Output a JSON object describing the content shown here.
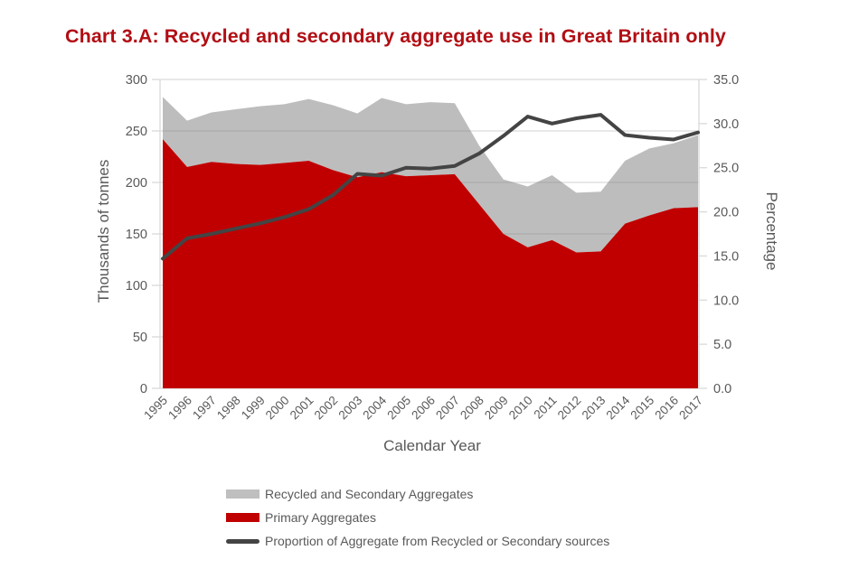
{
  "title": "Chart 3.A: Recycled and secondary aggregate use in Great Britain only",
  "colors": {
    "title": "#B10E14",
    "primary": "#C00000",
    "recycled_swatch": "#BFBFBF",
    "recycled_area": "rgba(128,128,128,0.52)",
    "proportion_line": "#444444",
    "axis_text": "#595959",
    "gridline": "#D9D9D9"
  },
  "left_axis": {
    "title": "Thousands of tonnes",
    "ticks": [
      "0",
      "50",
      "100",
      "150",
      "200",
      "250",
      "300"
    ]
  },
  "right_axis": {
    "title": "Percentage",
    "ticks": [
      "0.0",
      "5.0",
      "10.0",
      "15.0",
      "20.0",
      "25.0",
      "30.0",
      "35.0"
    ]
  },
  "x_axis": {
    "title": "Calendar Year"
  },
  "legend": {
    "items": [
      {
        "label": "Recycled and Secondary Aggregates",
        "type": "area",
        "color": "#BFBFBF"
      },
      {
        "label": "Primary Aggregates",
        "type": "area",
        "color": "#C00000"
      },
      {
        "label": "Proportion of Aggregate from Recycled or Secondary sources",
        "type": "line",
        "color": "#444444"
      }
    ]
  },
  "chart_data": {
    "type": "area",
    "title": "Chart 3.A: Recycled and secondary aggregate use in Great Britain only",
    "xlabel": "Calendar Year",
    "ylabel": "Thousands of tonnes",
    "y2label": "Percentage",
    "ylim": [
      0,
      300
    ],
    "y2lim": [
      0,
      35
    ],
    "grid": true,
    "legend_position": "bottom",
    "x": [
      1995,
      1996,
      1997,
      1998,
      1999,
      2000,
      2001,
      2002,
      2003,
      2004,
      2005,
      2006,
      2007,
      2008,
      2009,
      2010,
      2011,
      2012,
      2013,
      2014,
      2015,
      2016,
      2017
    ],
    "series": [
      {
        "name": "Primary Aggregates",
        "type": "area-stacked",
        "axis": "left",
        "values": [
          242,
          215,
          220,
          218,
          217,
          219,
          221,
          212,
          205,
          210,
          206,
          207,
          208,
          179,
          150,
          137,
          144,
          132,
          133,
          160,
          168,
          175,
          176
        ]
      },
      {
        "name": "Recycled and Secondary Aggregates",
        "type": "area-stacked",
        "axis": "left",
        "values": [
          41,
          45,
          48,
          53,
          57,
          57,
          60,
          63,
          62,
          72,
          70,
          71,
          69,
          57,
          53,
          59,
          63,
          58,
          58,
          61,
          65,
          63,
          70
        ]
      },
      {
        "name": "Proportion of Aggregate from Recycled or Secondary sources",
        "type": "line",
        "axis": "right",
        "values": [
          14.7,
          17.0,
          17.5,
          18.1,
          18.7,
          19.4,
          20.3,
          21.9,
          24.3,
          24.1,
          25.0,
          24.9,
          25.2,
          26.6,
          28.6,
          30.8,
          30.0,
          30.6,
          31.0,
          28.7,
          28.4,
          28.2,
          29.0
        ]
      }
    ]
  }
}
